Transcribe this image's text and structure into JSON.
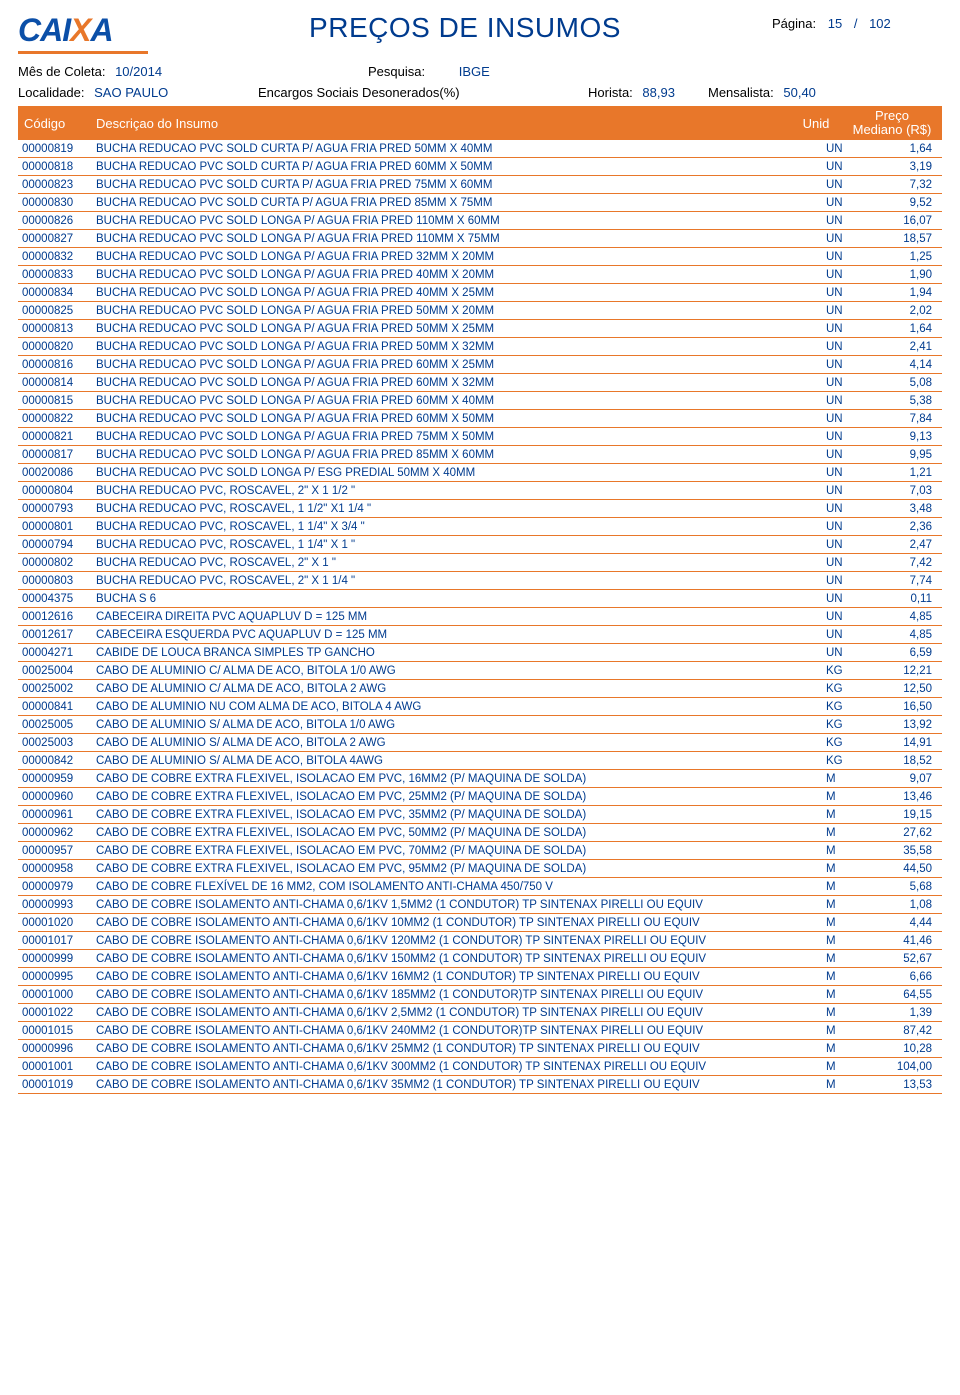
{
  "report": {
    "title": "PREÇOS DE INSUMOS",
    "page_label": "Página:",
    "page_current": "15",
    "page_sep": "/",
    "page_total": "102",
    "mes_label": "Mês de Coleta:",
    "mes_value": "10/2014",
    "pesquisa_label": "Pesquisa:",
    "pesquisa_value": "IBGE",
    "local_label": "Localidade:",
    "local_value": "SAO PAULO",
    "encargos_label": "Encargos Sociais Desonerados(%)",
    "horista_label": "Horista:",
    "horista_value": "88,93",
    "mensalista_label": "Mensalista:",
    "mensalista_value": "50,40"
  },
  "columns": {
    "codigo": "Código",
    "descricao": "Descriçao do Insumo",
    "unid": "Unid",
    "preco_l1": "Preço",
    "preco_l2": "Mediano (R$)"
  },
  "colors": {
    "header_bg": "#e8772a",
    "header_fg": "#ffffff",
    "text_blue": "#003b8e",
    "row_border": "#e8772a"
  },
  "rows": [
    {
      "codigo": "00000819",
      "desc": "BUCHA REDUCAO PVC SOLD CURTA P/ AGUA FRIA PRED 50MM X 40MM",
      "unid": "UN",
      "preco": "1,64"
    },
    {
      "codigo": "00000818",
      "desc": "BUCHA REDUCAO PVC SOLD CURTA P/ AGUA FRIA PRED 60MM X 50MM",
      "unid": "UN",
      "preco": "3,19"
    },
    {
      "codigo": "00000823",
      "desc": "BUCHA REDUCAO PVC SOLD CURTA P/ AGUA FRIA PRED 75MM X 60MM",
      "unid": "UN",
      "preco": "7,32"
    },
    {
      "codigo": "00000830",
      "desc": "BUCHA REDUCAO PVC SOLD CURTA P/ AGUA FRIA PRED 85MM X 75MM",
      "unid": "UN",
      "preco": "9,52"
    },
    {
      "codigo": "00000826",
      "desc": "BUCHA REDUCAO PVC SOLD LONGA P/ AGUA FRIA PRED 110MM X 60MM",
      "unid": "UN",
      "preco": "16,07"
    },
    {
      "codigo": "00000827",
      "desc": "BUCHA REDUCAO PVC SOLD LONGA P/ AGUA FRIA PRED 110MM X 75MM",
      "unid": "UN",
      "preco": "18,57"
    },
    {
      "codigo": "00000832",
      "desc": "BUCHA REDUCAO PVC SOLD LONGA P/ AGUA FRIA PRED 32MM X 20MM",
      "unid": "UN",
      "preco": "1,25"
    },
    {
      "codigo": "00000833",
      "desc": "BUCHA REDUCAO PVC SOLD LONGA P/ AGUA FRIA PRED 40MM X 20MM",
      "unid": "UN",
      "preco": "1,90"
    },
    {
      "codigo": "00000834",
      "desc": "BUCHA REDUCAO PVC SOLD LONGA P/ AGUA FRIA PRED 40MM X 25MM",
      "unid": "UN",
      "preco": "1,94"
    },
    {
      "codigo": "00000825",
      "desc": "BUCHA REDUCAO PVC SOLD LONGA P/ AGUA FRIA PRED 50MM X 20MM",
      "unid": "UN",
      "preco": "2,02"
    },
    {
      "codigo": "00000813",
      "desc": "BUCHA REDUCAO PVC SOLD LONGA P/ AGUA FRIA PRED 50MM X 25MM",
      "unid": "UN",
      "preco": "1,64"
    },
    {
      "codigo": "00000820",
      "desc": "BUCHA REDUCAO PVC SOLD LONGA P/ AGUA FRIA PRED 50MM X 32MM",
      "unid": "UN",
      "preco": "2,41"
    },
    {
      "codigo": "00000816",
      "desc": "BUCHA REDUCAO PVC SOLD LONGA P/ AGUA FRIA PRED 60MM X 25MM",
      "unid": "UN",
      "preco": "4,14"
    },
    {
      "codigo": "00000814",
      "desc": "BUCHA REDUCAO PVC SOLD LONGA P/ AGUA FRIA PRED 60MM X 32MM",
      "unid": "UN",
      "preco": "5,08"
    },
    {
      "codigo": "00000815",
      "desc": "BUCHA REDUCAO PVC SOLD LONGA P/ AGUA FRIA PRED 60MM X 40MM",
      "unid": "UN",
      "preco": "5,38"
    },
    {
      "codigo": "00000822",
      "desc": "BUCHA REDUCAO PVC SOLD LONGA P/ AGUA FRIA PRED 60MM X 50MM",
      "unid": "UN",
      "preco": "7,84"
    },
    {
      "codigo": "00000821",
      "desc": "BUCHA REDUCAO PVC SOLD LONGA P/ AGUA FRIA PRED 75MM X 50MM",
      "unid": "UN",
      "preco": "9,13"
    },
    {
      "codigo": "00000817",
      "desc": "BUCHA REDUCAO PVC SOLD LONGA P/ AGUA FRIA PRED 85MM X 60MM",
      "unid": "UN",
      "preco": "9,95"
    },
    {
      "codigo": "00020086",
      "desc": "BUCHA REDUCAO PVC SOLD LONGA P/ ESG PREDIAL 50MM X 40MM",
      "unid": "UN",
      "preco": "1,21"
    },
    {
      "codigo": "00000804",
      "desc": "BUCHA REDUCAO PVC, ROSCAVEL,  2\"  X 1 1/2 \"",
      "unid": "UN",
      "preco": "7,03"
    },
    {
      "codigo": "00000793",
      "desc": "BUCHA REDUCAO PVC, ROSCAVEL, 1 1/2\"  X1 1/4 \"",
      "unid": "UN",
      "preco": "3,48"
    },
    {
      "codigo": "00000801",
      "desc": "BUCHA REDUCAO PVC, ROSCAVEL, 1 1/4\"  X 3/4 \"",
      "unid": "UN",
      "preco": "2,36"
    },
    {
      "codigo": "00000794",
      "desc": "BUCHA REDUCAO PVC, ROSCAVEL, 1 1/4\" X 1 \"",
      "unid": "UN",
      "preco": "2,47"
    },
    {
      "codigo": "00000802",
      "desc": "BUCHA REDUCAO PVC, ROSCAVEL, 2\"  X 1 \"",
      "unid": "UN",
      "preco": "7,42"
    },
    {
      "codigo": "00000803",
      "desc": "BUCHA REDUCAO PVC, ROSCAVEL, 2\"  X 1 1/4 \"",
      "unid": "UN",
      "preco": "7,74"
    },
    {
      "codigo": "00004375",
      "desc": "BUCHA S 6",
      "unid": "UN",
      "preco": "0,11"
    },
    {
      "codigo": "00012616",
      "desc": "CABECEIRA DIREITA PVC AQUAPLUV D = 125 MM",
      "unid": "UN",
      "preco": "4,85"
    },
    {
      "codigo": "00012617",
      "desc": "CABECEIRA ESQUERDA PVC AQUAPLUV D = 125 MM",
      "unid": "UN",
      "preco": "4,85"
    },
    {
      "codigo": "00004271",
      "desc": "CABIDE DE LOUCA BRANCA SIMPLES TP GANCHO",
      "unid": "UN",
      "preco": "6,59"
    },
    {
      "codigo": "00025004",
      "desc": "CABO DE ALUMINIO C/ ALMA DE ACO, BITOLA 1/0 AWG",
      "unid": "KG",
      "preco": "12,21"
    },
    {
      "codigo": "00025002",
      "desc": "CABO DE ALUMINIO C/ ALMA DE ACO, BITOLA 2 AWG",
      "unid": "KG",
      "preco": "12,50"
    },
    {
      "codigo": "00000841",
      "desc": "CABO DE ALUMINIO NU COM ALMA DE ACO, BITOLA 4 AWG",
      "unid": "KG",
      "preco": "16,50"
    },
    {
      "codigo": "00025005",
      "desc": "CABO DE ALUMINIO S/ ALMA DE ACO, BITOLA 1/0 AWG",
      "unid": "KG",
      "preco": "13,92"
    },
    {
      "codigo": "00025003",
      "desc": "CABO DE ALUMINIO S/ ALMA DE ACO, BITOLA 2 AWG",
      "unid": "KG",
      "preco": "14,91"
    },
    {
      "codigo": "00000842",
      "desc": "CABO DE ALUMINIO S/ ALMA DE ACO, BITOLA 4AWG",
      "unid": "KG",
      "preco": "18,52"
    },
    {
      "codigo": "00000959",
      "desc": "CABO DE COBRE EXTRA FLEXIVEL, ISOLACAO EM PVC, 16MM2 (P/ MAQUINA DE SOLDA)",
      "unid": "M",
      "preco": "9,07"
    },
    {
      "codigo": "00000960",
      "desc": "CABO DE COBRE EXTRA FLEXIVEL, ISOLACAO EM PVC, 25MM2 (P/ MAQUINA DE SOLDA)",
      "unid": "M",
      "preco": "13,46"
    },
    {
      "codigo": "00000961",
      "desc": "CABO DE COBRE EXTRA FLEXIVEL, ISOLACAO EM PVC, 35MM2 (P/ MAQUINA DE SOLDA)",
      "unid": "M",
      "preco": "19,15"
    },
    {
      "codigo": "00000962",
      "desc": "CABO DE COBRE EXTRA FLEXIVEL, ISOLACAO EM PVC, 50MM2 (P/ MAQUINA DE SOLDA)",
      "unid": "M",
      "preco": "27,62"
    },
    {
      "codigo": "00000957",
      "desc": "CABO DE COBRE EXTRA FLEXIVEL, ISOLACAO EM PVC, 70MM2 (P/ MAQUINA DE SOLDA)",
      "unid": "M",
      "preco": "35,58"
    },
    {
      "codigo": "00000958",
      "desc": "CABO DE COBRE EXTRA FLEXIVEL, ISOLACAO EM PVC, 95MM2 (P/ MAQUINA DE SOLDA)",
      "unid": "M",
      "preco": "44,50"
    },
    {
      "codigo": "00000979",
      "desc": "CABO DE COBRE FLEXÍVEL DE 16 MM2, COM ISOLAMENTO ANTI-CHAMA 450/750 V",
      "unid": "M",
      "preco": "5,68"
    },
    {
      "codigo": "00000993",
      "desc": "CABO DE COBRE ISOLAMENTO ANTI-CHAMA 0,6/1KV 1,5MM2 (1 CONDUTOR) TP SINTENAX PIRELLI OU EQUIV",
      "unid": "M",
      "preco": "1,08"
    },
    {
      "codigo": "00001020",
      "desc": "CABO DE COBRE ISOLAMENTO ANTI-CHAMA 0,6/1KV 10MM2 (1 CONDUTOR) TP SINTENAX   PIRELLI OU EQUIV",
      "unid": "M",
      "preco": "4,44"
    },
    {
      "codigo": "00001017",
      "desc": "CABO DE COBRE ISOLAMENTO ANTI-CHAMA 0,6/1KV 120MM2 (1 CONDUTOR) TP SINTENAX   PIRELLI OU EQUIV",
      "unid": "M",
      "preco": "41,46"
    },
    {
      "codigo": "00000999",
      "desc": "CABO DE COBRE ISOLAMENTO ANTI-CHAMA 0,6/1KV 150MM2 (1 CONDUTOR) TP SINTENAX PIRELLI OU EQUIV",
      "unid": "M",
      "preco": "52,67"
    },
    {
      "codigo": "00000995",
      "desc": "CABO DE COBRE ISOLAMENTO ANTI-CHAMA 0,6/1KV 16MM2 (1 CONDUTOR) TP SINTENAX PIRELLI OU EQUIV",
      "unid": "M",
      "preco": "6,66"
    },
    {
      "codigo": "00001000",
      "desc": "CABO DE COBRE ISOLAMENTO ANTI-CHAMA 0,6/1KV 185MM2 (1 CONDUTOR)TP SINTENAX PIRELLI OU EQUIV",
      "unid": "M",
      "preco": "64,55"
    },
    {
      "codigo": "00001022",
      "desc": "CABO DE COBRE ISOLAMENTO ANTI-CHAMA 0,6/1KV 2,5MM2 (1 CONDUTOR) TP SINTENAX   PIRELLI OU EQUIV",
      "unid": "M",
      "preco": "1,39"
    },
    {
      "codigo": "00001015",
      "desc": "CABO DE COBRE ISOLAMENTO ANTI-CHAMA 0,6/1KV 240MM2 (1 CONDUTOR)TP SINTENAX PIRELLI OU EQUIV",
      "unid": "M",
      "preco": "87,42"
    },
    {
      "codigo": "00000996",
      "desc": "CABO DE COBRE ISOLAMENTO ANTI-CHAMA 0,6/1KV 25MM2 (1 CONDUTOR) TP SINTENAX PIRELLI OU EQUIV",
      "unid": "M",
      "preco": "10,28"
    },
    {
      "codigo": "00001001",
      "desc": "CABO DE COBRE ISOLAMENTO ANTI-CHAMA 0,6/1KV 300MM2 (1 CONDUTOR) TP SINTENAX PIRELLI OU EQUIV",
      "unid": "M",
      "preco": "104,00"
    },
    {
      "codigo": "00001019",
      "desc": "CABO DE COBRE ISOLAMENTO ANTI-CHAMA 0,6/1KV 35MM2 (1 CONDUTOR) TP SINTENAX PIRELLI OU EQUIV",
      "unid": "M",
      "preco": "13,53"
    }
  ]
}
